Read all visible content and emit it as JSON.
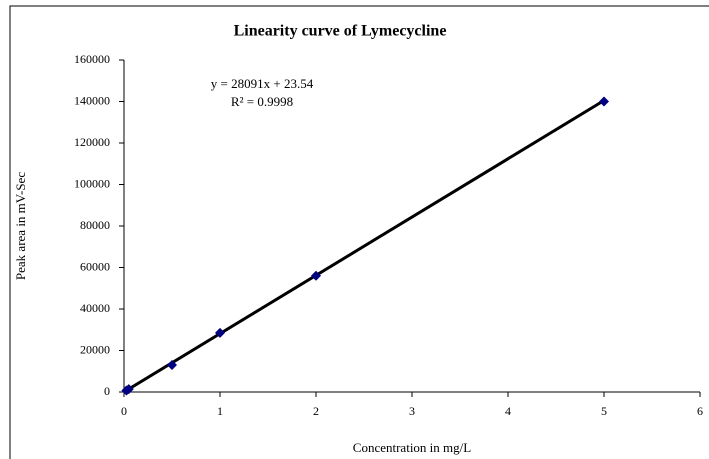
{
  "chart_data": {
    "type": "scatter",
    "title": "Linearity curve of  Lymecycline",
    "x_label": "Concentration in mg/L",
    "y_label": "Peak area in mV-Sec",
    "annotations": [
      "y = 28091x + 23.54",
      "R² = 0.9998"
    ],
    "series": [
      {
        "color": "#000080",
        "x": [
          0.025,
          0.05,
          0.5,
          1,
          2,
          5
        ],
        "values": [
          700,
          1400,
          13000,
          28500,
          56000,
          140000
        ]
      },
      {
        "type": "line",
        "color": "#000000",
        "x": [
          0,
          5
        ],
        "values": [
          24,
          140479
        ]
      }
    ],
    "xlim": [
      0,
      6
    ],
    "xticks": [
      0,
      1,
      2,
      3,
      4,
      5,
      6
    ],
    "ylim": [
      0,
      160000
    ],
    "yticks": [
      0,
      20000,
      40000,
      60000,
      80000,
      100000,
      120000,
      140000,
      160000
    ],
    "grid": false
  }
}
